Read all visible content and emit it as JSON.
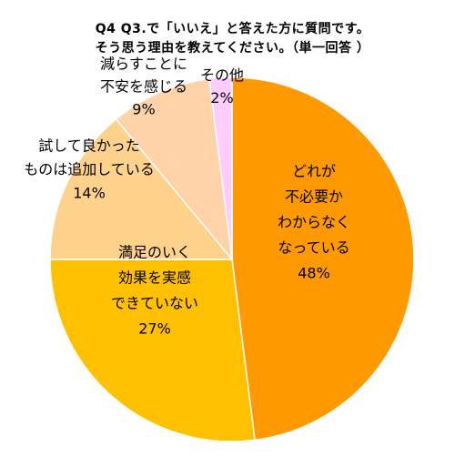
{
  "chart_data": {
    "type": "pie",
    "title": [
      "Q4 Q3.で「いいえ」と答えた方に質問です。",
      "そう思う理由を教えてください。（単一回答 ）"
    ],
    "slices": [
      {
        "label_lines": [
          "どれが",
          "不必要か",
          "わからなく",
          "なっている"
        ],
        "value": 48,
        "value_label": "48%",
        "color": "#FF9900"
      },
      {
        "label_lines": [
          "満足のいく",
          "効果を実感",
          "できていない"
        ],
        "value": 27,
        "value_label": "27%",
        "color": "#FFC000"
      },
      {
        "label_lines": [
          "試して良かった",
          "ものは追加している"
        ],
        "value": 14,
        "value_label": "14%",
        "color": "#FFD28C"
      },
      {
        "label_lines": [
          "減らすことに",
          "不安を感じる"
        ],
        "value": 9,
        "value_label": "9%",
        "color": "#FFD2A8"
      },
      {
        "label_lines": [
          "その他"
        ],
        "value": 2,
        "value_label": "2%",
        "color": "#FFCCFF"
      }
    ],
    "start_angle": "12 o'clock",
    "direction": "clockwise",
    "legend": "none"
  }
}
